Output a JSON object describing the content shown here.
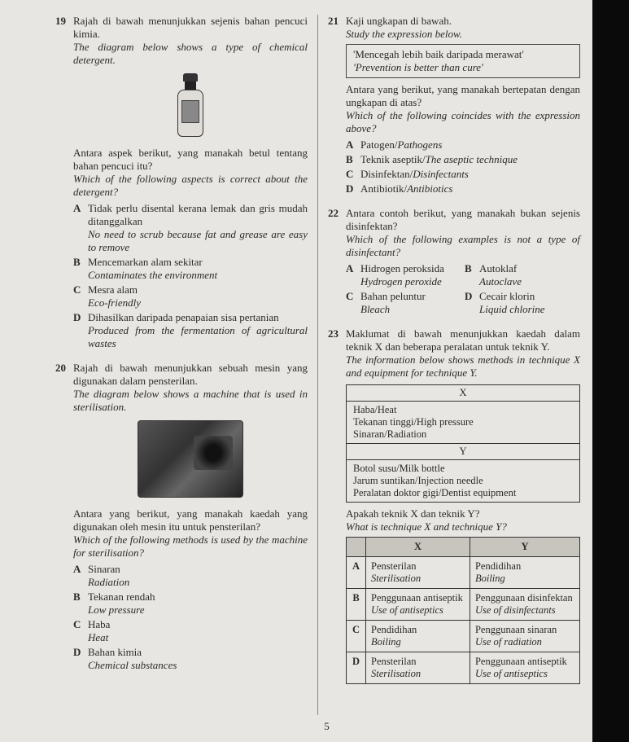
{
  "page_number": "5",
  "q19": {
    "num": "19",
    "text_ms": "Rajah di bawah menunjukkan sejenis bahan pencuci kimia.",
    "text_en": "The diagram below shows a type of chemical detergent.",
    "prompt_ms": "Antara aspek berikut, yang manakah betul tentang bahan pencuci itu?",
    "prompt_en": "Which of the following aspects is correct about the detergent?",
    "options": [
      {
        "l": "A",
        "ms": "Tidak perlu disental kerana lemak dan gris mudah ditanggalkan",
        "en": "No need to scrub because fat and grease are easy to remove"
      },
      {
        "l": "B",
        "ms": "Mencemarkan alam sekitar",
        "en": "Contaminates the environment"
      },
      {
        "l": "C",
        "ms": "Mesra alam",
        "en": "Eco-friendly"
      },
      {
        "l": "D",
        "ms": "Dihasilkan daripada penapaian sisa pertanian",
        "en": "Produced from the fermentation of agricultural wastes"
      }
    ]
  },
  "q20": {
    "num": "20",
    "text_ms": "Rajah di bawah menunjukkan sebuah mesin yang digunakan dalam pensterilan.",
    "text_en": "The diagram below shows a machine that is used in sterilisation.",
    "prompt_ms": "Antara yang berikut, yang manakah kaedah yang digunakan oleh mesin itu untuk pensterilan?",
    "prompt_en": "Which of the following methods is used by the machine for sterilisation?",
    "options": [
      {
        "l": "A",
        "ms": "Sinaran",
        "en": "Radiation"
      },
      {
        "l": "B",
        "ms": "Tekanan rendah",
        "en": "Low pressure"
      },
      {
        "l": "C",
        "ms": "Haba",
        "en": "Heat"
      },
      {
        "l": "D",
        "ms": "Bahan kimia",
        "en": "Chemical substances"
      }
    ]
  },
  "q21": {
    "num": "21",
    "text_ms": "Kaji ungkapan di bawah.",
    "text_en": "Study the expression below.",
    "quote_ms": "'Mencegah lebih baik daripada merawat'",
    "quote_en": "'Prevention is better than cure'",
    "prompt_ms": "Antara yang berikut, yang manakah bertepatan dengan ungkapan di atas?",
    "prompt_en": "Which of the following coincides with the expression above?",
    "options": [
      {
        "l": "A",
        "ms": "Patogen/",
        "en": "Pathogens"
      },
      {
        "l": "B",
        "ms": "Teknik aseptik/",
        "en": "The aseptic technique"
      },
      {
        "l": "C",
        "ms": "Disinfektan/",
        "en": "Disinfectants"
      },
      {
        "l": "D",
        "ms": "Antibiotik/",
        "en": "Antibiotics"
      }
    ]
  },
  "q22": {
    "num": "22",
    "text_ms": "Antara contoh berikut, yang manakah bukan sejenis disinfektan?",
    "text_en": "Which of the following examples is not a type of disinfectant?",
    "options": [
      {
        "l": "A",
        "ms": "Hidrogen peroksida",
        "en": "Hydrogen peroxide"
      },
      {
        "l": "B",
        "ms": "Autoklaf",
        "en": "Autoclave"
      },
      {
        "l": "C",
        "ms": "Bahan peluntur",
        "en": "Bleach"
      },
      {
        "l": "D",
        "ms": "Cecair klorin",
        "en": "Liquid chlorine"
      }
    ]
  },
  "q23": {
    "num": "23",
    "text_ms": "Maklumat di bawah menunjukkan kaedah dalam teknik X dan beberapa peralatan untuk teknik Y.",
    "text_en": "The information below shows methods in technique X and equipment for technique Y.",
    "info": {
      "x_label": "X",
      "x_items": [
        "Haba/Heat",
        "Tekanan tinggi/High pressure",
        "Sinaran/Radiation"
      ],
      "y_label": "Y",
      "y_items": [
        "Botol susu/Milk bottle",
        "Jarum suntikan/Injection needle",
        "Peralatan doktor gigi/Dentist equipment"
      ]
    },
    "prompt_ms": "Apakah teknik X dan teknik Y?",
    "prompt_en": "What is technique X and technique Y?",
    "table": {
      "headers": [
        "",
        "X",
        "Y"
      ],
      "rows": [
        {
          "l": "A",
          "x_ms": "Pensterilan",
          "x_en": "Sterilisation",
          "y_ms": "Pendidihan",
          "y_en": "Boiling"
        },
        {
          "l": "B",
          "x_ms": "Penggunaan antiseptik",
          "x_en": "Use of antiseptics",
          "y_ms": "Penggunaan disinfektan",
          "y_en": "Use of disinfectants"
        },
        {
          "l": "C",
          "x_ms": "Pendidihan",
          "x_en": "Boiling",
          "y_ms": "Penggunaan sinaran",
          "y_en": "Use of radiation"
        },
        {
          "l": "D",
          "x_ms": "Pensterilan",
          "x_en": "Sterilisation",
          "y_ms": "Penggunaan antiseptik",
          "y_en": "Use of antiseptics"
        }
      ]
    }
  }
}
